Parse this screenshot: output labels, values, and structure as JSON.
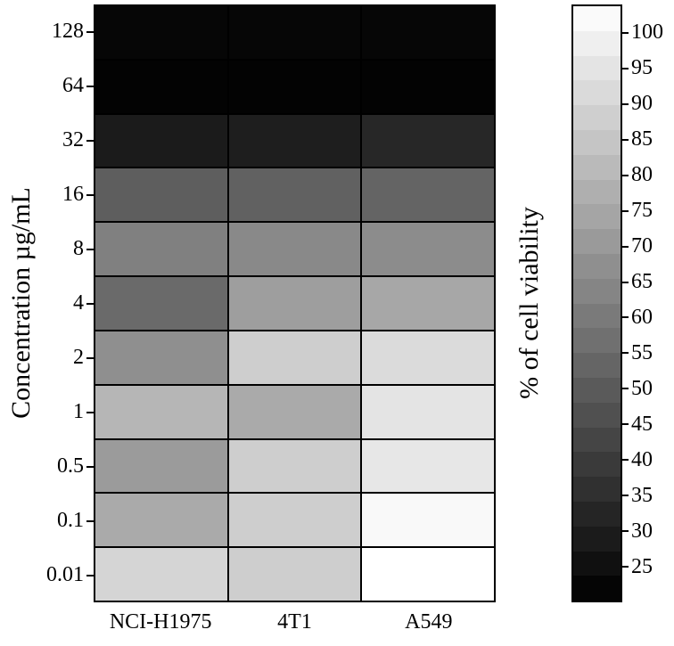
{
  "chart_data": {
    "type": "heatmap",
    "title": "",
    "xlabel": "",
    "ylabel": "Concentration µg/mL",
    "rows": [
      "128",
      "64",
      "32",
      "16",
      "8",
      "4",
      "2",
      "1",
      "0.5",
      "0.1",
      "0.01"
    ],
    "columns": [
      "NCI-H1975",
      "4T1",
      "A549"
    ],
    "values": [
      [
        22,
        22,
        22
      ],
      [
        21,
        21,
        21
      ],
      [
        29,
        30,
        33
      ],
      [
        51,
        52,
        53
      ],
      [
        62,
        65,
        66
      ],
      [
        55,
        72,
        75
      ],
      [
        67,
        88,
        92
      ],
      [
        80,
        76,
        95
      ],
      [
        71,
        88,
        96
      ],
      [
        76,
        88,
        102
      ],
      [
        90,
        88,
        104
      ]
    ],
    "value_unit": "% of cell viability",
    "colorbar": {
      "label": "% of cell viability",
      "min": 20,
      "max": 104,
      "ticks": [
        100,
        95,
        90,
        85,
        80,
        75,
        70,
        65,
        60,
        55,
        50,
        45,
        40,
        35,
        30,
        25
      ],
      "bands": 24,
      "color_low": "#000000",
      "color_high": "#ffffff"
    },
    "grid": true,
    "legend_position": "right-colorbar"
  }
}
